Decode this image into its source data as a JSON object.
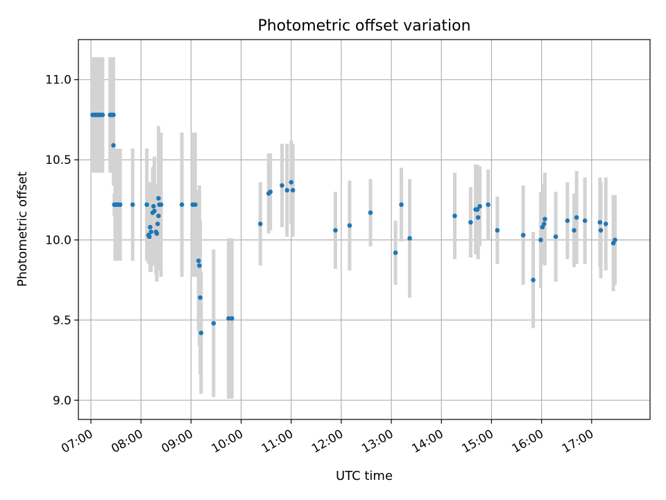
{
  "chart_data": {
    "type": "scatter",
    "title": "Photometric offset variation",
    "xlabel": "UTC time",
    "ylabel": "Photometric offset",
    "xlim": [
      "06:45",
      "18:10"
    ],
    "ylim": [
      8.88,
      11.25
    ],
    "x_ticks": [
      "07:00",
      "08:00",
      "09:00",
      "10:00",
      "11:00",
      "12:00",
      "13:00",
      "14:00",
      "15:00",
      "16:00",
      "17:00"
    ],
    "y_ticks": [
      9.0,
      9.5,
      10.0,
      10.5,
      11.0
    ],
    "y_tick_labels": [
      "9.0",
      "9.5",
      "10.0",
      "10.5",
      "11.0"
    ],
    "grid": true,
    "marker_color": "#1f77b4",
    "errorbar_color": "#d3d3d3",
    "points": [
      {
        "t": "07:02",
        "y": 10.78,
        "err": 0.36
      },
      {
        "t": "07:04",
        "y": 10.78,
        "err": 0.36
      },
      {
        "t": "07:06",
        "y": 10.78,
        "err": 0.36
      },
      {
        "t": "07:08",
        "y": 10.78,
        "err": 0.36
      },
      {
        "t": "07:10",
        "y": 10.78,
        "err": 0.36
      },
      {
        "t": "07:12",
        "y": 10.78,
        "err": 0.36
      },
      {
        "t": "07:14",
        "y": 10.78,
        "err": 0.36
      },
      {
        "t": "07:23",
        "y": 10.78,
        "err": 0.36
      },
      {
        "t": "07:25",
        "y": 10.78,
        "err": 0.36
      },
      {
        "t": "07:27",
        "y": 10.78,
        "err": 0.36
      },
      {
        "t": "07:27",
        "y": 10.59,
        "err": 0.25
      },
      {
        "t": "07:28",
        "y": 10.22,
        "err": 0.07
      },
      {
        "t": "07:29",
        "y": 10.22,
        "err": 0.35
      },
      {
        "t": "07:31",
        "y": 10.22,
        "err": 0.35
      },
      {
        "t": "07:33",
        "y": 10.22,
        "err": 0.35
      },
      {
        "t": "07:35",
        "y": 10.22,
        "err": 0.35
      },
      {
        "t": "07:50",
        "y": 10.22,
        "err": 0.35
      },
      {
        "t": "08:07",
        "y": 10.22,
        "err": 0.35
      },
      {
        "t": "08:09",
        "y": 10.03,
        "err": 0.18
      },
      {
        "t": "08:10",
        "y": 10.02,
        "err": 0.14
      },
      {
        "t": "08:11",
        "y": 10.08,
        "err": 0.28
      },
      {
        "t": "08:12",
        "y": 10.05,
        "err": 0.25
      },
      {
        "t": "08:14",
        "y": 10.17,
        "err": 0.28
      },
      {
        "t": "08:15",
        "y": 10.21,
        "err": 0.25
      },
      {
        "t": "08:16",
        "y": 10.18,
        "err": 0.34
      },
      {
        "t": "08:18",
        "y": 10.05,
        "err": 0.27
      },
      {
        "t": "08:19",
        "y": 10.04,
        "err": 0.3
      },
      {
        "t": "08:20",
        "y": 10.1,
        "err": 0.25
      },
      {
        "t": "08:21",
        "y": 10.15,
        "err": 0.3
      },
      {
        "t": "08:21",
        "y": 10.26,
        "err": 0.45
      },
      {
        "t": "08:22",
        "y": 10.22,
        "err": 0.3
      },
      {
        "t": "08:24",
        "y": 10.22,
        "err": 0.45
      },
      {
        "t": "08:49",
        "y": 10.22,
        "err": 0.45
      },
      {
        "t": "09:02",
        "y": 10.22,
        "err": 0.45
      },
      {
        "t": "09:05",
        "y": 10.22,
        "err": 0.45
      },
      {
        "t": "09:09",
        "y": 9.87,
        "err": 0.44
      },
      {
        "t": "09:10",
        "y": 9.84,
        "err": 0.5
      },
      {
        "t": "09:11",
        "y": 9.64,
        "err": 0.48
      },
      {
        "t": "09:12",
        "y": 9.42,
        "err": 0.38
      },
      {
        "t": "09:27",
        "y": 9.48,
        "err": 0.46
      },
      {
        "t": "09:45",
        "y": 9.51,
        "err": 0.5
      },
      {
        "t": "09:49",
        "y": 9.51,
        "err": 0.5
      },
      {
        "t": "10:23",
        "y": 10.1,
        "err": 0.26
      },
      {
        "t": "10:33",
        "y": 10.29,
        "err": 0.25
      },
      {
        "t": "10:35",
        "y": 10.3,
        "err": 0.24
      },
      {
        "t": "10:49",
        "y": 10.34,
        "err": 0.26
      },
      {
        "t": "10:55",
        "y": 10.31,
        "err": 0.29
      },
      {
        "t": "11:00",
        "y": 10.36,
        "err": 0.26
      },
      {
        "t": "11:02",
        "y": 10.31,
        "err": 0.29
      },
      {
        "t": "11:53",
        "y": 10.06,
        "err": 0.24
      },
      {
        "t": "12:10",
        "y": 10.09,
        "err": 0.28
      },
      {
        "t": "12:35",
        "y": 10.17,
        "err": 0.21
      },
      {
        "t": "13:05",
        "y": 9.92,
        "err": 0.2
      },
      {
        "t": "13:12",
        "y": 10.22,
        "err": 0.23
      },
      {
        "t": "13:22",
        "y": 10.01,
        "err": 0.37
      },
      {
        "t": "14:16",
        "y": 10.15,
        "err": 0.27
      },
      {
        "t": "14:35",
        "y": 10.11,
        "err": 0.22
      },
      {
        "t": "14:41",
        "y": 10.19,
        "err": 0.28
      },
      {
        "t": "14:43",
        "y": 10.19,
        "err": 0.28
      },
      {
        "t": "14:44",
        "y": 10.14,
        "err": 0.26
      },
      {
        "t": "14:46",
        "y": 10.21,
        "err": 0.25
      },
      {
        "t": "14:56",
        "y": 10.22,
        "err": 0.22
      },
      {
        "t": "15:07",
        "y": 10.06,
        "err": 0.21
      },
      {
        "t": "15:38",
        "y": 10.03,
        "err": 0.31
      },
      {
        "t": "15:50",
        "y": 9.75,
        "err": 0.3
      },
      {
        "t": "15:59",
        "y": 10.0,
        "err": 0.3
      },
      {
        "t": "16:01",
        "y": 10.08,
        "err": 0.22
      },
      {
        "t": "16:03",
        "y": 10.1,
        "err": 0.25
      },
      {
        "t": "16:04",
        "y": 10.13,
        "err": 0.29
      },
      {
        "t": "16:17",
        "y": 10.02,
        "err": 0.28
      },
      {
        "t": "16:31",
        "y": 10.12,
        "err": 0.24
      },
      {
        "t": "16:39",
        "y": 10.06,
        "err": 0.23
      },
      {
        "t": "16:42",
        "y": 10.14,
        "err": 0.29
      },
      {
        "t": "16:52",
        "y": 10.12,
        "err": 0.27
      },
      {
        "t": "17:10",
        "y": 10.11,
        "err": 0.28
      },
      {
        "t": "17:11",
        "y": 10.06,
        "err": 0.3
      },
      {
        "t": "17:17",
        "y": 10.1,
        "err": 0.29
      },
      {
        "t": "17:26",
        "y": 9.98,
        "err": 0.3
      },
      {
        "t": "17:28",
        "y": 10.0,
        "err": 0.28
      }
    ]
  }
}
